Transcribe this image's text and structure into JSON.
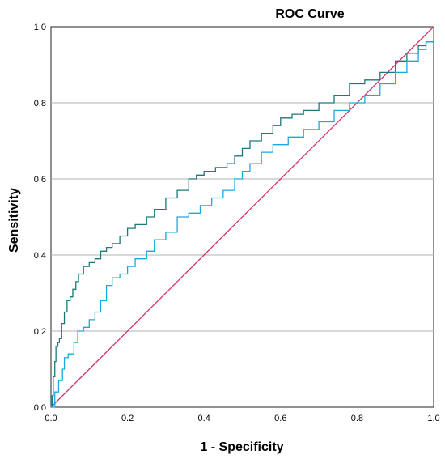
{
  "chart_data": {
    "type": "line",
    "title": "ROC Curve",
    "xlabel": "1 - Specificity",
    "ylabel": "Sensitivity",
    "xlim": [
      0.0,
      1.0
    ],
    "ylim": [
      0.0,
      1.0
    ],
    "x_ticks": [
      "0.0",
      "0.2",
      "0.4",
      "0.6",
      "0.8",
      "1.0"
    ],
    "y_ticks": [
      "0.0",
      "0.2",
      "0.4",
      "0.6",
      "0.8",
      "1.0"
    ],
    "grid": "horizontal",
    "legend": "none",
    "series": [
      {
        "color": "#1a7a7a",
        "points": [
          [
            0.0,
            0.0
          ],
          [
            0.003,
            0.03
          ],
          [
            0.006,
            0.08
          ],
          [
            0.01,
            0.12
          ],
          [
            0.013,
            0.16
          ],
          [
            0.018,
            0.17
          ],
          [
            0.022,
            0.18
          ],
          [
            0.028,
            0.22
          ],
          [
            0.035,
            0.25
          ],
          [
            0.042,
            0.28
          ],
          [
            0.05,
            0.29
          ],
          [
            0.057,
            0.31
          ],
          [
            0.065,
            0.33
          ],
          [
            0.072,
            0.35
          ],
          [
            0.085,
            0.37
          ],
          [
            0.1,
            0.38
          ],
          [
            0.115,
            0.39
          ],
          [
            0.13,
            0.41
          ],
          [
            0.145,
            0.42
          ],
          [
            0.16,
            0.43
          ],
          [
            0.18,
            0.45
          ],
          [
            0.2,
            0.47
          ],
          [
            0.22,
            0.48
          ],
          [
            0.25,
            0.5
          ],
          [
            0.27,
            0.52
          ],
          [
            0.3,
            0.55
          ],
          [
            0.33,
            0.57
          ],
          [
            0.36,
            0.6
          ],
          [
            0.38,
            0.61
          ],
          [
            0.4,
            0.62
          ],
          [
            0.43,
            0.63
          ],
          [
            0.46,
            0.64
          ],
          [
            0.48,
            0.66
          ],
          [
            0.5,
            0.68
          ],
          [
            0.52,
            0.7
          ],
          [
            0.55,
            0.72
          ],
          [
            0.58,
            0.74
          ],
          [
            0.6,
            0.76
          ],
          [
            0.63,
            0.77
          ],
          [
            0.66,
            0.78
          ],
          [
            0.7,
            0.8
          ],
          [
            0.74,
            0.82
          ],
          [
            0.78,
            0.85
          ],
          [
            0.82,
            0.86
          ],
          [
            0.86,
            0.88
          ],
          [
            0.9,
            0.91
          ],
          [
            0.93,
            0.93
          ],
          [
            0.96,
            0.95
          ],
          [
            0.98,
            0.96
          ],
          [
            1.0,
            1.0
          ]
        ]
      },
      {
        "color": "#19a9e0",
        "points": [
          [
            0.0,
            0.0
          ],
          [
            0.01,
            0.04
          ],
          [
            0.02,
            0.07
          ],
          [
            0.03,
            0.1
          ],
          [
            0.035,
            0.13
          ],
          [
            0.045,
            0.14
          ],
          [
            0.06,
            0.17
          ],
          [
            0.07,
            0.2
          ],
          [
            0.085,
            0.21
          ],
          [
            0.1,
            0.23
          ],
          [
            0.115,
            0.25
          ],
          [
            0.13,
            0.28
          ],
          [
            0.145,
            0.32
          ],
          [
            0.16,
            0.34
          ],
          [
            0.18,
            0.35
          ],
          [
            0.2,
            0.37
          ],
          [
            0.22,
            0.39
          ],
          [
            0.25,
            0.41
          ],
          [
            0.27,
            0.44
          ],
          [
            0.3,
            0.46
          ],
          [
            0.33,
            0.5
          ],
          [
            0.36,
            0.51
          ],
          [
            0.39,
            0.53
          ],
          [
            0.42,
            0.55
          ],
          [
            0.45,
            0.57
          ],
          [
            0.48,
            0.6
          ],
          [
            0.5,
            0.62
          ],
          [
            0.52,
            0.64
          ],
          [
            0.55,
            0.67
          ],
          [
            0.58,
            0.69
          ],
          [
            0.62,
            0.71
          ],
          [
            0.66,
            0.73
          ],
          [
            0.7,
            0.75
          ],
          [
            0.74,
            0.78
          ],
          [
            0.78,
            0.8
          ],
          [
            0.82,
            0.82
          ],
          [
            0.86,
            0.85
          ],
          [
            0.9,
            0.88
          ],
          [
            0.93,
            0.91
          ],
          [
            0.96,
            0.94
          ],
          [
            0.98,
            0.96
          ],
          [
            1.0,
            1.0
          ]
        ]
      },
      {
        "color": "#d6336c",
        "points": [
          [
            0.0,
            0.0
          ],
          [
            1.0,
            1.0
          ]
        ]
      }
    ]
  }
}
